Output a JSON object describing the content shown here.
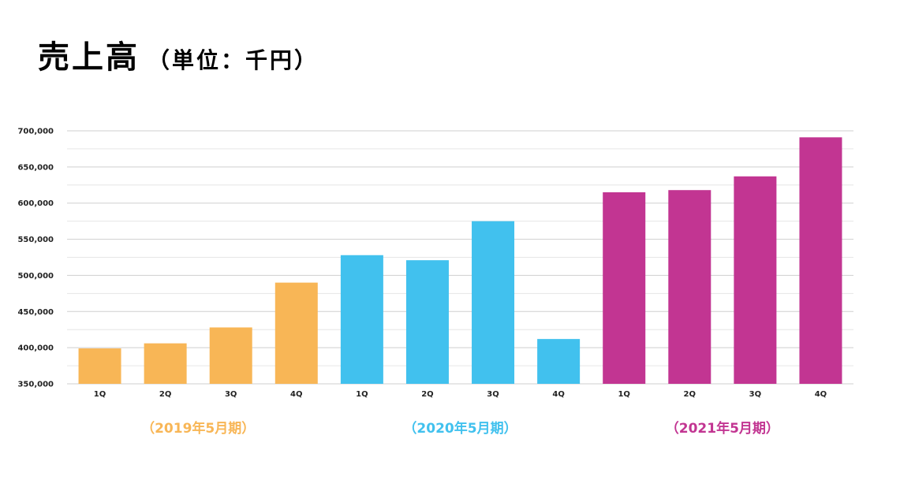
{
  "header": {
    "title": "売上高",
    "subtitle": "（単位：千円）"
  },
  "chart_data": {
    "type": "bar",
    "title": "売上高",
    "ylim": [
      350000,
      700000
    ],
    "yticks": [
      350000,
      400000,
      450000,
      500000,
      550000,
      600000,
      650000,
      700000
    ],
    "ytick_labels": [
      "350,000",
      "400,000",
      "450,000",
      "500,000",
      "550,000",
      "600,000",
      "650,000",
      "700,000"
    ],
    "grid": true,
    "groups": [
      {
        "label": "（2019年5月期）",
        "color": "#F8B656",
        "categories": [
          "1Q",
          "2Q",
          "3Q",
          "4Q"
        ],
        "values": [
          399000,
          406000,
          428000,
          490000
        ]
      },
      {
        "label": "（2020年5月期）",
        "color": "#41C1EE",
        "categories": [
          "1Q",
          "2Q",
          "3Q",
          "4Q"
        ],
        "values": [
          528000,
          521000,
          575000,
          412000
        ]
      },
      {
        "label": "（2021年5月期）",
        "color": "#C23592",
        "categories": [
          "1Q",
          "2Q",
          "3Q",
          "4Q"
        ],
        "values": [
          615000,
          618000,
          637000,
          691000
        ]
      }
    ]
  }
}
